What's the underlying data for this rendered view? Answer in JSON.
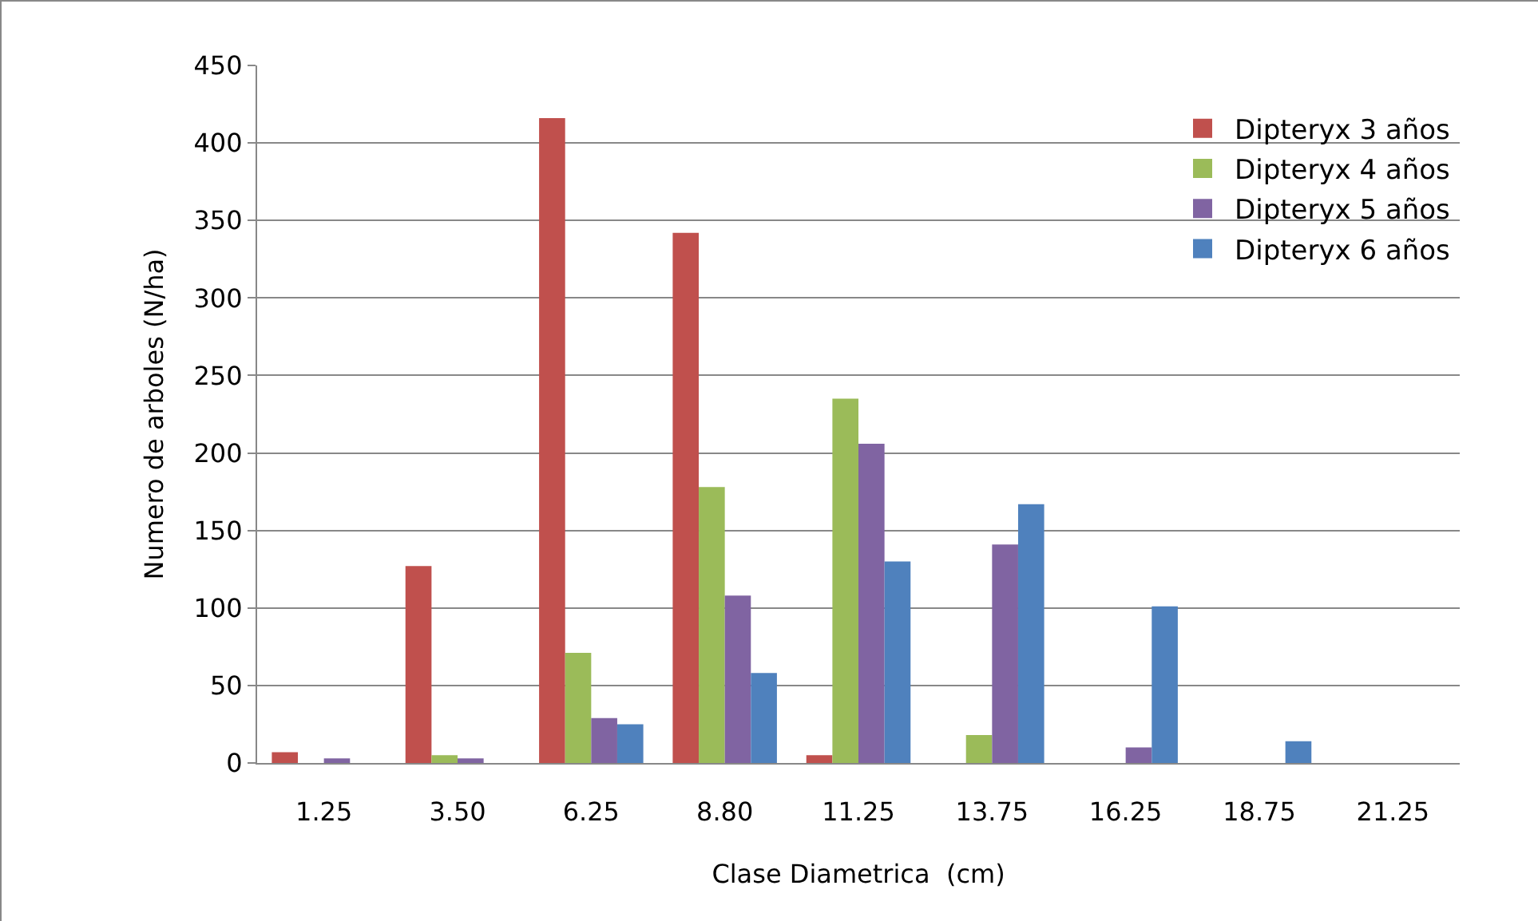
{
  "chart_data": {
    "type": "bar",
    "xlabel": "Clase Diametrica  (cm)",
    "ylabel": "Numero de arboles (N/ha)",
    "categories": [
      "1.25",
      "3.50",
      "6.25",
      "8.80",
      "11.25",
      "13.75",
      "16.25",
      "18.75",
      "21.25"
    ],
    "series": [
      {
        "name": "Dipteryx 3 años",
        "color": "#c0504d",
        "values": [
          7,
          127,
          416,
          342,
          5,
          0,
          0,
          0,
          0
        ]
      },
      {
        "name": "Dipteryx 4 años",
        "color": "#9bbb59",
        "values": [
          0,
          5,
          71,
          178,
          235,
          18,
          0,
          0,
          0
        ]
      },
      {
        "name": "Dipteryx 5 años",
        "color": "#8064a2",
        "values": [
          3,
          3,
          29,
          108,
          206,
          141,
          10,
          0,
          0
        ]
      },
      {
        "name": "Dipteryx 6 años",
        "color": "#4f81bd",
        "values": [
          0,
          0,
          25,
          58,
          130,
          167,
          101,
          14,
          0
        ]
      }
    ],
    "ylim": [
      0,
      450
    ],
    "yticks": [
      0,
      50,
      100,
      150,
      200,
      250,
      300,
      350,
      400,
      450
    ],
    "grid": "y",
    "legend": "top right"
  }
}
